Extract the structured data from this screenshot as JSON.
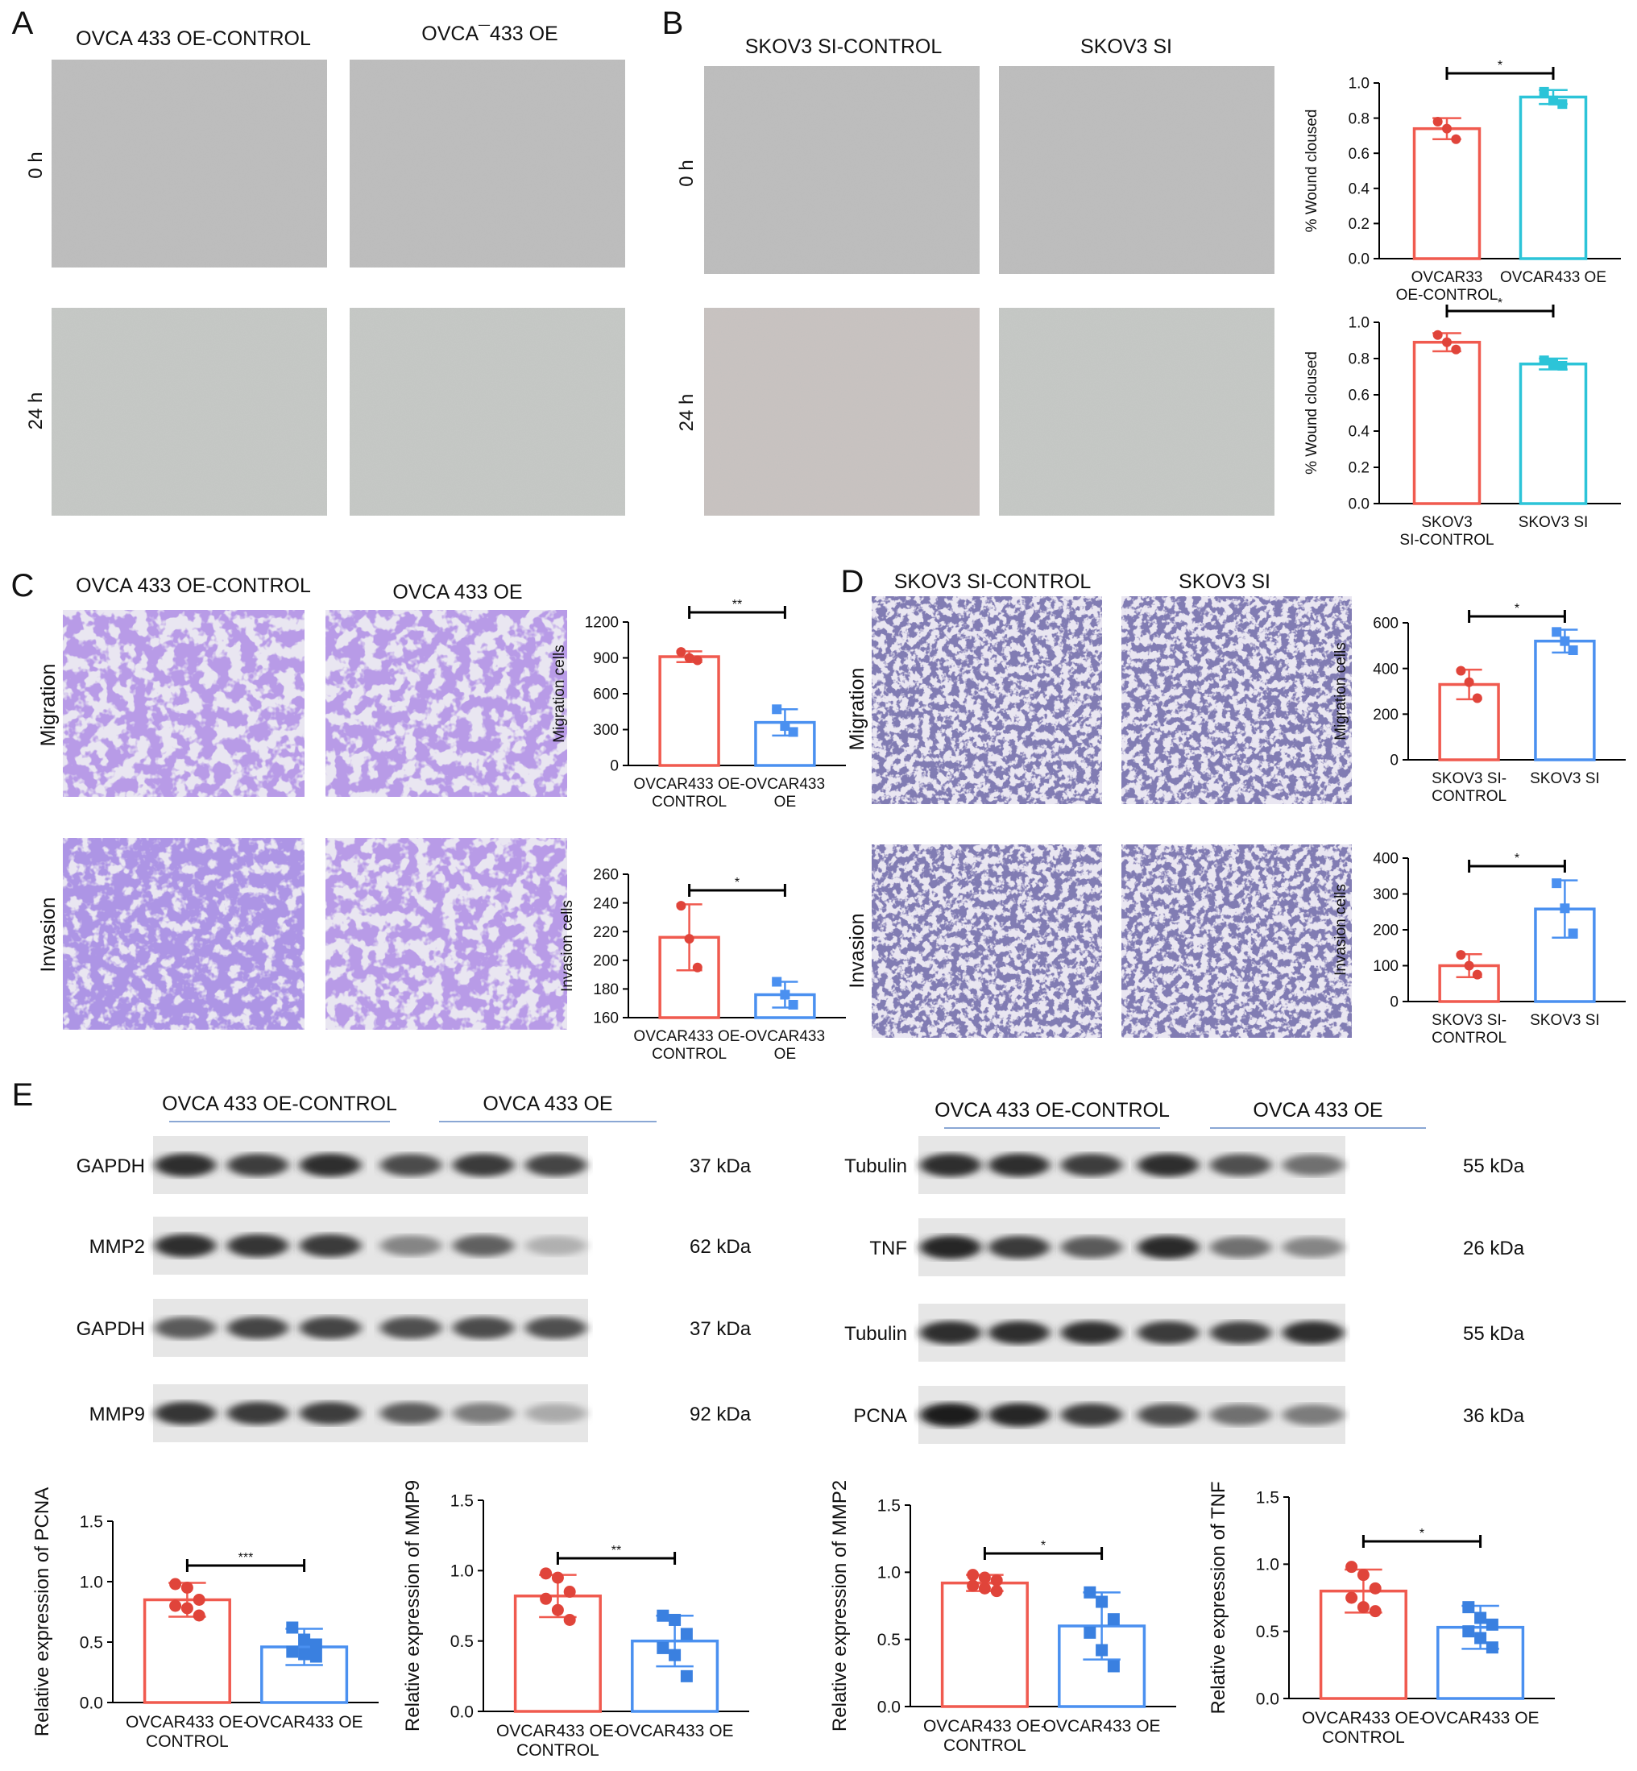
{
  "panels": {
    "A": {
      "letter": "A",
      "col_labels": [
        "OVCA 433 OE-CONTROL",
        "OVCA¯433 OE"
      ],
      "row_labels": [
        "0 h",
        "24 h"
      ]
    },
    "B": {
      "letter": "B",
      "col_labels": [
        "SKOV3 SI-CONTROL",
        "SKOV3 SI"
      ],
      "row_labels": [
        "0 h",
        "24 h"
      ]
    },
    "C": {
      "letter": "C",
      "col_labels": [
        "OVCA 433 OE-CONTROL",
        "OVCA 433 OE"
      ],
      "row_labels": [
        "Migration",
        "Invasion"
      ]
    },
    "D": {
      "letter": "D",
      "col_labels": [
        "SKOV3 SI-CONTROL",
        "SKOV3 SI"
      ],
      "row_labels": [
        "Migration",
        "Invasion"
      ]
    },
    "E": {
      "letter": "E",
      "left_blot": {
        "group_labels": [
          "OVCA 433 OE-CONTROL",
          "OVCA 433 OE"
        ],
        "rows": [
          {
            "protein": "GAPDH",
            "size": "37 kDa",
            "intensities": [
              0.85,
              0.78,
              0.85,
              0.72,
              0.8,
              0.75
            ]
          },
          {
            "protein": "MMP2",
            "size": "62 kDa",
            "intensities": [
              0.85,
              0.82,
              0.8,
              0.45,
              0.62,
              0.25
            ]
          },
          {
            "protein": "GAPDH",
            "size": "37 kDa",
            "intensities": [
              0.65,
              0.75,
              0.75,
              0.7,
              0.72,
              0.7
            ]
          },
          {
            "protein": "MMP9",
            "size": "92 kDa",
            "intensities": [
              0.82,
              0.8,
              0.78,
              0.65,
              0.5,
              0.28
            ]
          }
        ]
      },
      "right_blot": {
        "group_labels": [
          "OVCA 433 OE-CONTROL",
          "OVCA 433 OE"
        ],
        "rows": [
          {
            "protein": "Tubulin",
            "size": "55 kDa",
            "intensities": [
              0.85,
              0.85,
              0.78,
              0.85,
              0.7,
              0.55
            ]
          },
          {
            "protein": "TNF",
            "size": "26 kDa",
            "intensities": [
              0.9,
              0.8,
              0.65,
              0.88,
              0.55,
              0.45
            ]
          },
          {
            "protein": "Tubulin",
            "size": "55 kDa",
            "intensities": [
              0.85,
              0.85,
              0.85,
              0.8,
              0.78,
              0.85
            ]
          },
          {
            "protein": "PCNA",
            "size": "36 kDa",
            "intensities": [
              0.95,
              0.9,
              0.8,
              0.72,
              0.55,
              0.5
            ]
          }
        ]
      }
    }
  },
  "colors": {
    "control": "#f05a4f",
    "treated_cyan": "#2cc4d8",
    "treated_blue": "#4a90f0",
    "treated_scatter": "#3a80e0",
    "ctrl_point": "#e0443a"
  },
  "chart_data": [
    {
      "id": "B-top",
      "type": "bar",
      "ylabel": "% Wound cloused",
      "ylim": [
        0,
        1.0
      ],
      "yticks": [
        "0.0",
        "0.2",
        "0.4",
        "0.6",
        "0.8",
        "1.0"
      ],
      "categories": [
        "OVCAR33\nOE-CONTROL",
        "OVCAR433 OE"
      ],
      "values": [
        0.74,
        0.92
      ],
      "errors": [
        0.06,
        0.04
      ],
      "points": [
        [
          0.78,
          0.74,
          0.68
        ],
        [
          0.95,
          0.9,
          0.88
        ]
      ],
      "sig": "*"
    },
    {
      "id": "B-bottom",
      "type": "bar",
      "ylabel": "% Wound cloused",
      "ylim": [
        0,
        1.0
      ],
      "yticks": [
        "0.0",
        "0.2",
        "0.4",
        "0.6",
        "0.8",
        "1.0"
      ],
      "categories": [
        "SKOV3\nSI-CONTROL",
        "SKOV3 SI"
      ],
      "values": [
        0.89,
        0.77
      ],
      "errors": [
        0.05,
        0.03
      ],
      "points": [
        [
          0.93,
          0.89,
          0.85
        ],
        [
          0.79,
          0.77,
          0.76
        ]
      ],
      "sig": "*"
    },
    {
      "id": "C-migration",
      "type": "bar",
      "ylabel": "Migration cells",
      "ylim": [
        0,
        1200
      ],
      "yticks": [
        "0",
        "300",
        "600",
        "900",
        "1200"
      ],
      "categories": [
        "OVCAR433 OE-\nCONTROL",
        "OVCAR433\nOE"
      ],
      "values": [
        910,
        360
      ],
      "errors": [
        45,
        110
      ],
      "points": [
        [
          950,
          900,
          880
        ],
        [
          470,
          330,
          280
        ]
      ],
      "sig": "**"
    },
    {
      "id": "C-invasion",
      "type": "bar",
      "ylabel": "Invasion cells",
      "ylim": [
        160,
        260
      ],
      "yticks": [
        "160",
        "180",
        "200",
        "220",
        "240",
        "260"
      ],
      "categories": [
        "OVCAR433 OE-\nCONTROL",
        "OVCAR433\nOE"
      ],
      "values": [
        216,
        176
      ],
      "errors": [
        23,
        9
      ],
      "points": [
        [
          238,
          215,
          195
        ],
        [
          185,
          176,
          169
        ]
      ],
      "sig": "*"
    },
    {
      "id": "D-migration",
      "type": "bar",
      "ylabel": "Migration cells",
      "ylim": [
        0,
        600
      ],
      "yticks": [
        "0",
        "200",
        "400",
        "600"
      ],
      "categories": [
        "SKOV3 SI-\nCONTROL",
        "SKOV3 SI"
      ],
      "values": [
        330,
        520
      ],
      "errors": [
        65,
        50
      ],
      "points": [
        [
          390,
          340,
          270
        ],
        [
          560,
          520,
          480
        ]
      ],
      "sig": "*"
    },
    {
      "id": "D-invasion",
      "type": "bar",
      "ylabel": "Invasion cells",
      "ylim": [
        0,
        400
      ],
      "yticks": [
        "0",
        "100",
        "200",
        "300",
        "400"
      ],
      "categories": [
        "SKOV3 SI-\nCONTROL",
        "SKOV3 SI"
      ],
      "values": [
        100,
        258
      ],
      "errors": [
        32,
        80
      ],
      "points": [
        [
          130,
          100,
          75
        ],
        [
          330,
          260,
          190
        ]
      ],
      "sig": "*"
    },
    {
      "id": "E-PCNA",
      "type": "bar",
      "ylabel": "Relative expression of PCNA",
      "ylim": [
        0,
        1.5
      ],
      "yticks": [
        "0.0",
        "0.5",
        "1.0",
        "1.5"
      ],
      "categories": [
        "OVCAR433 OE-\nCONTROL",
        "OVCAR433 OE"
      ],
      "values": [
        0.85,
        0.46
      ],
      "errors": [
        0.14,
        0.15
      ],
      "points": [
        [
          0.98,
          0.95,
          0.85,
          0.8,
          0.78,
          0.72
        ],
        [
          0.62,
          0.52,
          0.48,
          0.42,
          0.4,
          0.38
        ]
      ],
      "sig": "***"
    },
    {
      "id": "E-MMP9",
      "type": "bar",
      "ylabel": "Relative expression of MMP9",
      "ylim": [
        0,
        1.5
      ],
      "yticks": [
        "0.0",
        "0.5",
        "1.0",
        "1.5"
      ],
      "categories": [
        "OVCAR433 OE-\nCONTROL",
        "OVCAR433 OE"
      ],
      "values": [
        0.82,
        0.5
      ],
      "errors": [
        0.15,
        0.18
      ],
      "points": [
        [
          0.98,
          0.95,
          0.85,
          0.8,
          0.72,
          0.65
        ],
        [
          0.68,
          0.65,
          0.55,
          0.45,
          0.4,
          0.25
        ]
      ],
      "sig": "**"
    },
    {
      "id": "E-MMP2",
      "type": "bar",
      "ylabel": "Relative expression of MMP2",
      "ylim": [
        0,
        1.5
      ],
      "yticks": [
        "0.0",
        "0.5",
        "1.0",
        "1.5"
      ],
      "categories": [
        "OVCAR433 OE-\nCONTROL",
        "OVCAR433 OE"
      ],
      "values": [
        0.92,
        0.6
      ],
      "errors": [
        0.06,
        0.25
      ],
      "points": [
        [
          0.98,
          0.96,
          0.94,
          0.9,
          0.88,
          0.86
        ],
        [
          0.85,
          0.78,
          0.65,
          0.55,
          0.42,
          0.3
        ]
      ],
      "sig": "*"
    },
    {
      "id": "E-TNF",
      "type": "bar",
      "ylabel": "Relative expression of TNF",
      "ylim": [
        0,
        1.5
      ],
      "yticks": [
        "0.0",
        "0.5",
        "1.0",
        "1.5"
      ],
      "categories": [
        "OVCAR433 OE-\nCONTROL",
        "OVCAR433 OE"
      ],
      "values": [
        0.8,
        0.53
      ],
      "errors": [
        0.16,
        0.16
      ],
      "points": [
        [
          0.98,
          0.92,
          0.82,
          0.75,
          0.68,
          0.65
        ],
        [
          0.68,
          0.6,
          0.55,
          0.5,
          0.45,
          0.38
        ]
      ],
      "sig": "*"
    }
  ]
}
